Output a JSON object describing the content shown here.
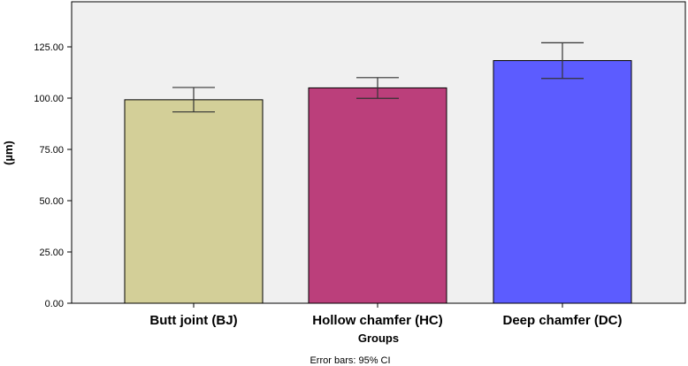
{
  "chart_data": {
    "type": "bar",
    "title": "",
    "xlabel": "Groups",
    "ylabel": "(µm)",
    "ylim": [
      0,
      150
    ],
    "yticks": [
      "0.00",
      "25.00",
      "50.00",
      "75.00",
      "100.00",
      "125.00"
    ],
    "categories": [
      "Butt joint (BJ)",
      "Hollow chamfer (HC)",
      "Deep chamfer (DC)"
    ],
    "values": [
      99.2,
      105.0,
      118.3
    ],
    "error_low": [
      93.3,
      99.9,
      109.6
    ],
    "error_high": [
      105.2,
      110.0,
      127.0
    ],
    "colors": [
      "#d3cf98",
      "#bb3f7b",
      "#5c5cff"
    ],
    "background": "#f0f0f0",
    "grid": false,
    "legend": "none",
    "footnote": "Error bars: 95% CI"
  }
}
